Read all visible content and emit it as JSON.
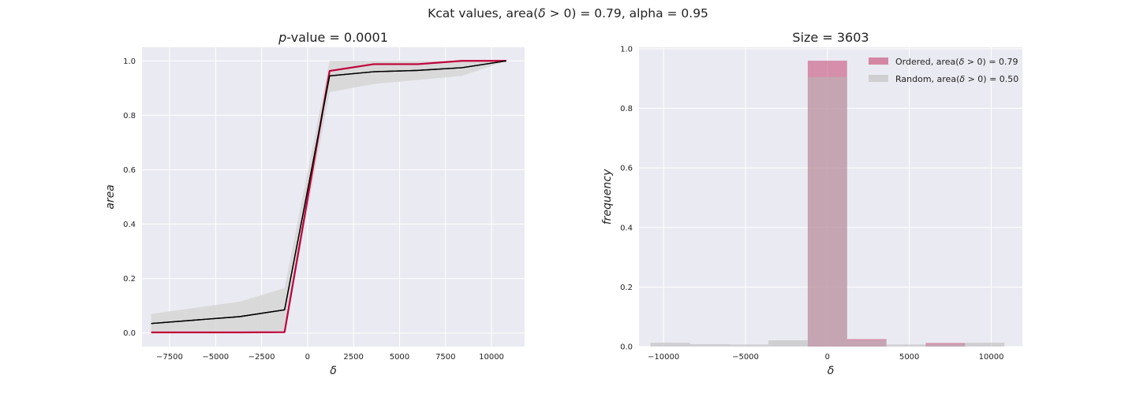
{
  "figure": {
    "suptitle_prefix": "Kcat values, area(",
    "suptitle_delta": "δ",
    "suptitle_suffix": " > 0) = 0.79, alpha = 0.95"
  },
  "colors": {
    "background": "#EAEAF2",
    "grid": "#FFFFFF",
    "ordered": "#C0003A",
    "random_line": "#000000",
    "band": "#D6D6D6",
    "ordered_hist": "#C7517A",
    "random_hist": "#B8B8B8"
  },
  "chart_data": [
    {
      "type": "line",
      "title_prefix": "p",
      "title_suffix": "-value = 0.0001",
      "xlabel": "δ",
      "ylabel": "area",
      "xlim": [
        -9000,
        11800
      ],
      "ylim": [
        -0.05,
        1.05
      ],
      "xticks": [
        -7500,
        -5000,
        -2500,
        0,
        2500,
        5000,
        7500,
        10000
      ],
      "xtick_labels": [
        "−7500",
        "−5000",
        "−2500",
        "0",
        "2500",
        "5000",
        "7500",
        "10000"
      ],
      "yticks": [
        0.0,
        0.2,
        0.4,
        0.6,
        0.8,
        1.0
      ],
      "ytick_labels": [
        "0.0",
        "0.2",
        "0.4",
        "0.6",
        "0.8",
        "1.0"
      ],
      "grid": true,
      "series": [
        {
          "role": "ordered",
          "x": [
            -8500,
            -3700,
            -1250,
            1200,
            3600,
            6000,
            8400,
            10800
          ],
          "y": [
            0.002,
            0.002,
            0.003,
            0.963,
            0.988,
            0.988,
            1.0,
            1.0
          ]
        },
        {
          "role": "random",
          "x": [
            -8500,
            -3700,
            -1250,
            1200,
            3600,
            6000,
            8400,
            10800
          ],
          "y": [
            0.035,
            0.06,
            0.085,
            0.945,
            0.96,
            0.965,
            0.975,
            1.0
          ]
        }
      ],
      "band": {
        "x": [
          -8500,
          -3700,
          -1250,
          1200,
          3600,
          6000,
          8400,
          10800
        ],
        "lower": [
          0.0,
          0.0,
          0.0,
          0.885,
          0.915,
          0.93,
          0.945,
          1.0
        ],
        "upper": [
          0.07,
          0.115,
          0.165,
          1.0,
          1.0,
          1.0,
          1.0,
          1.0
        ]
      }
    },
    {
      "type": "bar",
      "title": "Size = 3603",
      "xlabel": "δ",
      "ylabel": "frequency",
      "xlim": [
        -11500,
        11900
      ],
      "ylim": [
        0,
        1.005
      ],
      "xticks": [
        -10000,
        -5000,
        0,
        5000,
        10000
      ],
      "xtick_labels": [
        "−10000",
        "−5000",
        "0",
        "5000",
        "10000"
      ],
      "yticks": [
        0.0,
        0.2,
        0.4,
        0.6,
        0.8,
        1.0
      ],
      "ytick_labels": [
        "0.0",
        "0.2",
        "0.4",
        "0.6",
        "0.8",
        "1.0"
      ],
      "grid": true,
      "legend_position": "top-right",
      "series": [
        {
          "label_prefix": "Ordered, area(",
          "label_suffix": " > 0) = 0.79",
          "role": "ordered",
          "bins": [
            -10800,
            -8400,
            -6000,
            -3600,
            -1200,
            1200,
            3600,
            6000,
            8400,
            10800
          ],
          "values": [
            0.0,
            0.0,
            0.0,
            0.0,
            0.96,
            0.025,
            0.0,
            0.012,
            0.0
          ]
        },
        {
          "label_prefix": "Random, area(",
          "label_suffix": " > 0) = 0.50",
          "role": "random",
          "bins": [
            -10800,
            -8400,
            -6000,
            -3600,
            -1200,
            1200,
            3600,
            6000,
            8400,
            10800
          ],
          "values": [
            0.013,
            0.008,
            0.007,
            0.021,
            0.905,
            0.021,
            0.007,
            0.008,
            0.013
          ]
        }
      ]
    }
  ]
}
